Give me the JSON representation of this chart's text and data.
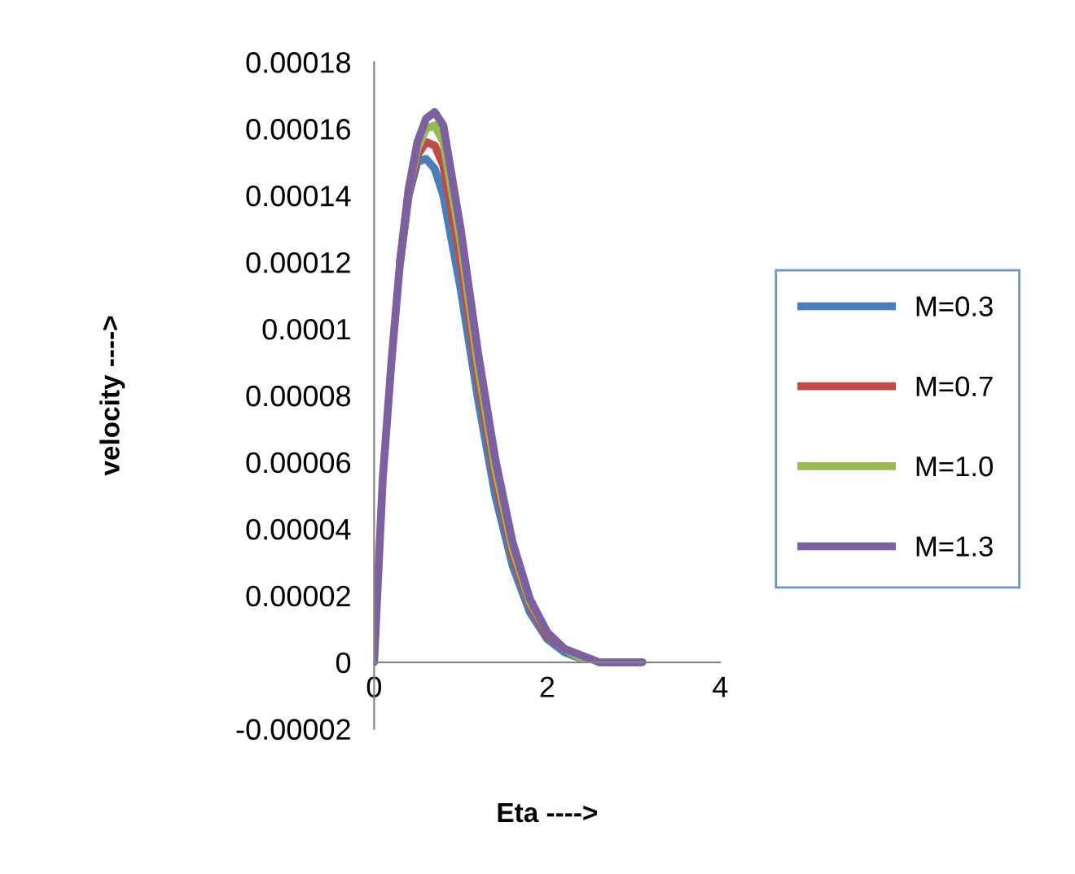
{
  "chart_data": {
    "type": "line",
    "xlabel": "Eta ---->",
    "ylabel": "velocity ---->",
    "x": [
      0,
      0.1,
      0.2,
      0.3,
      0.4,
      0.5,
      0.6,
      0.7,
      0.8,
      1.0,
      1.2,
      1.4,
      1.6,
      1.8,
      2.0,
      2.2,
      2.4,
      2.6,
      2.8,
      3.0,
      3.1
    ],
    "series": [
      {
        "name": "M=0.3",
        "color": "#4a7ebb",
        "values": [
          null,
          null,
          null,
          0.00012,
          0.00014,
          0.00015,
          0.000151,
          0.000148,
          0.00014,
          0.000112,
          7.9e-05,
          5e-05,
          2.9e-05,
          1.5e-05,
          7e-06,
          3e-06,
          1e-06,
          null,
          null,
          null,
          null
        ]
      },
      {
        "name": "M=0.7",
        "color": "#be4b48",
        "values": [
          null,
          null,
          null,
          0.00012,
          0.000141,
          0.000152,
          0.000156,
          0.000155,
          0.000149,
          0.00012,
          8.5e-05,
          5.5e-05,
          3.2e-05,
          1.7e-05,
          8e-06,
          4e-06,
          1e-06,
          null,
          null,
          null,
          null
        ]
      },
      {
        "name": "M=1.0",
        "color": "#98b954",
        "values": [
          null,
          null,
          null,
          0.00012,
          0.000142,
          0.000154,
          0.00016,
          0.000161,
          0.000156,
          0.000126,
          8.9e-05,
          5.8e-05,
          3.4e-05,
          1.8e-05,
          9e-06,
          4e-06,
          1e-06,
          null,
          null,
          null,
          null
        ]
      },
      {
        "name": "M=1.3",
        "color": "#7d60a0",
        "values": [
          0,
          5.5e-05,
          9e-05,
          0.00012,
          0.000142,
          0.000156,
          0.000163,
          0.000165,
          0.000161,
          0.00013,
          9.3e-05,
          6.1e-05,
          3.6e-05,
          1.9e-05,
          9e-06,
          4e-06,
          2e-06,
          0,
          0,
          0,
          0
        ]
      }
    ],
    "xlim": [
      0,
      4
    ],
    "xticks": [
      0,
      2,
      4
    ],
    "ylim": [
      -2e-05,
      0.00018
    ],
    "yticks": [
      {
        "value": -2e-05,
        "label": "-0.00002"
      },
      {
        "value": 0,
        "label": "0"
      },
      {
        "value": 2e-05,
        "label": "0.00002"
      },
      {
        "value": 4e-05,
        "label": "0.00004"
      },
      {
        "value": 6e-05,
        "label": "0.00006"
      },
      {
        "value": 8e-05,
        "label": "0.00008"
      },
      {
        "value": 0.0001,
        "label": "0.0001"
      },
      {
        "value": 0.00012,
        "label": "0.00012"
      },
      {
        "value": 0.00014,
        "label": "0.00014"
      },
      {
        "value": 0.00016,
        "label": "0.00016"
      },
      {
        "value": 0.00018,
        "label": "0.00018"
      }
    ],
    "grid": false,
    "legend": "right",
    "marker": "none",
    "line_style": "solid"
  }
}
